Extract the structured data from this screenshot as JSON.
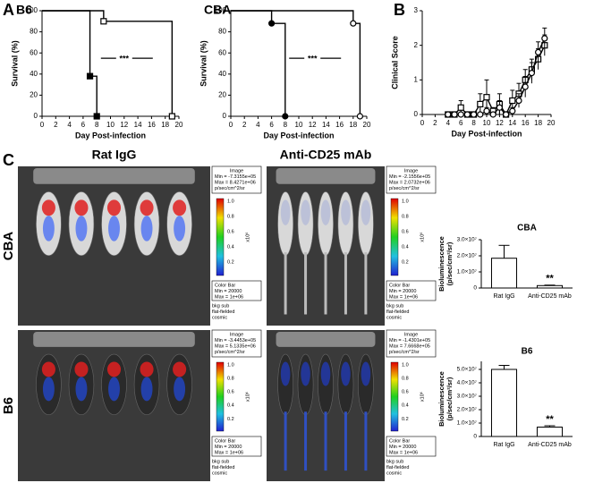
{
  "panel_labels": [
    "A",
    "B",
    "C"
  ],
  "chart_data": [
    {
      "type": "line",
      "title": "B6",
      "xlabel": "Day Post-infection",
      "ylabel": "Survival (%)",
      "step": true,
      "xlim": [
        0,
        20
      ],
      "xticks": [
        0,
        2,
        4,
        6,
        8,
        10,
        12,
        14,
        16,
        18,
        20
      ],
      "ylim": [
        0,
        100
      ],
      "yticks": [
        0,
        20,
        40,
        60,
        80,
        100
      ],
      "annotation": "***",
      "series": [
        {
          "x": [
            0,
            7,
            8
          ],
          "values": [
            100,
            38,
            0
          ],
          "marker": "square",
          "filled": true,
          "color": "#000000"
        },
        {
          "x": [
            0,
            9,
            19
          ],
          "values": [
            100,
            90,
            0
          ],
          "marker": "square",
          "filled": false,
          "color": "#000000"
        }
      ]
    },
    {
      "type": "line",
      "title": "CBA",
      "xlabel": "Day Post-infection",
      "ylabel": "Survival (%)",
      "step": true,
      "xlim": [
        0,
        20
      ],
      "xticks": [
        0,
        2,
        4,
        6,
        8,
        10,
        12,
        14,
        16,
        18,
        20
      ],
      "ylim": [
        0,
        100
      ],
      "yticks": [
        0,
        20,
        40,
        60,
        80,
        100
      ],
      "annotation": "***",
      "series": [
        {
          "x": [
            0,
            6,
            8
          ],
          "values": [
            100,
            88,
            0
          ],
          "marker": "circle",
          "filled": true,
          "color": "#000000"
        },
        {
          "x": [
            0,
            18,
            19
          ],
          "values": [
            100,
            88,
            0
          ],
          "marker": "circle",
          "filled": false,
          "color": "#000000"
        }
      ]
    },
    {
      "type": "line",
      "xlabel": "Day Post-infection",
      "ylabel": "Clinical Score",
      "step": false,
      "xlim": [
        0,
        20
      ],
      "xticks": [
        0,
        2,
        4,
        6,
        8,
        10,
        12,
        14,
        16,
        18,
        20
      ],
      "ylim": [
        0,
        3
      ],
      "yticks": [
        0,
        1,
        2,
        3
      ],
      "series": [
        {
          "x": [
            4,
            5,
            6,
            7,
            8,
            9,
            10,
            11,
            12,
            13,
            14,
            15,
            16,
            17,
            18,
            19
          ],
          "values": [
            0,
            0,
            0.2,
            0,
            0,
            0.3,
            0.5,
            0.1,
            0.3,
            0,
            0.4,
            0.6,
            1.0,
            1.3,
            1.6,
            2.0
          ],
          "errors": [
            0,
            0,
            0.2,
            0,
            0,
            0.3,
            0.5,
            0.1,
            0.3,
            0,
            0.3,
            0.3,
            0.3,
            0.3,
            0.3,
            0.3
          ],
          "marker": "square",
          "filled": false,
          "color": "#000000"
        },
        {
          "x": [
            4,
            5,
            6,
            7,
            8,
            9,
            10,
            11,
            12,
            13,
            14,
            15,
            16,
            17,
            18,
            19
          ],
          "values": [
            0,
            0,
            0,
            0,
            0,
            0,
            0.1,
            0,
            0.2,
            0,
            0.1,
            0.4,
            0.8,
            1.2,
            1.8,
            2.2
          ],
          "errors": [
            0,
            0,
            0,
            0,
            0,
            0,
            0.1,
            0,
            0.2,
            0,
            0.1,
            0.2,
            0.3,
            0.3,
            0.3,
            0.3
          ],
          "marker": "circle",
          "filled": false,
          "color": "#000000"
        }
      ]
    },
    {
      "type": "bar",
      "title": "CBA",
      "ylabel": [
        "Bioluminescence",
        "(p/sec/cm²/sr)"
      ],
      "categories": [
        "Rat IgG",
        "Anti-CD25 mAb"
      ],
      "values": [
        18500000,
        1500000
      ],
      "errors": [
        8000000,
        300000
      ],
      "color": "#ffffff",
      "ylim": [
        0,
        30000000
      ],
      "yticks": [
        0,
        {
          "value": 10000000,
          "label": "1.0×10⁷"
        },
        {
          "value": 20000000,
          "label": "2.0×10⁷"
        },
        {
          "value": 30000000,
          "label": "3.0×10⁷"
        }
      ],
      "annotation": "**"
    },
    {
      "type": "bar",
      "title": "B6",
      "ylabel": [
        "Bioluminescence",
        "(p/sec/cm²/sr)"
      ],
      "categories": [
        "Rat IgG",
        "Anti-CD25 mAb"
      ],
      "values": [
        50000000,
        7000000
      ],
      "errors": [
        3000000,
        1000000
      ],
      "color": "#ffffff",
      "ylim": [
        0,
        56000000
      ],
      "yticks": [
        0,
        {
          "value": 10000000,
          "label": "1.0×10⁷"
        },
        {
          "value": 20000000,
          "label": "2.0×10⁷"
        },
        {
          "value": 30000000,
          "label": "3.0×10⁷"
        },
        {
          "value": 40000000,
          "label": "4.0×10⁷"
        },
        {
          "value": 50000000,
          "label": "5.0×10⁷"
        }
      ],
      "annotation": "**"
    }
  ],
  "images": {
    "columns": [
      "Rat IgG",
      "Anti-CD25 mAb"
    ],
    "rows": [
      "CBA",
      "B6"
    ],
    "panels": [
      [
        {
          "image": "Image",
          "min": "Min = -7.3155e+05",
          "max": "Max = 8.4271e+06",
          "unit": "p/sec/cm^2/sr",
          "scale_ticks": [
            "1.0",
            "0.8",
            "0.6",
            "0.4",
            "0.2"
          ],
          "scale_unit": "x10⁶",
          "color_bar": "Color Bar",
          "cb_min": "Min = 20000",
          "cb_max": "Max = 1e+06",
          "notes": [
            "bkg sub",
            "flat-fielded",
            "cosmic"
          ]
        },
        {
          "image": "Image",
          "min": "Min = -2.1556e+05",
          "max": "Max = 2.0732e+06",
          "unit": "p/sec/cm^2/sr",
          "scale_ticks": [
            "1.0",
            "0.8",
            "0.6",
            "0.4",
            "0.2"
          ],
          "scale_unit": "x10⁶",
          "color_bar": "Color Bar",
          "cb_min": "Min = 20000",
          "cb_max": "Max = 1e+06",
          "notes": [
            "bkg sub",
            "flat-fielded",
            "cosmic"
          ]
        }
      ],
      [
        {
          "image": "Image",
          "min": "Min = -3.4453e+05",
          "max": "Max = 5.1335e+06",
          "unit": "p/sec/cm^2/sr",
          "scale_ticks": [
            "1.0",
            "0.8",
            "0.6",
            "0.4",
            "0.2"
          ],
          "scale_unit": "x10⁶",
          "color_bar": "Color Bar",
          "cb_min": "Min = 20000",
          "cb_max": "Max = 1e+06",
          "notes": [
            "bkg sub",
            "flat-fielded",
            "cosmic"
          ]
        },
        {
          "image": "Image",
          "min": "Min = -1.4301e+05",
          "max": "Max = 7.6668e+05",
          "unit": "p/sec/cm^2/sr",
          "scale_ticks": [
            "1.0",
            "0.8",
            "0.6",
            "0.4",
            "0.2"
          ],
          "scale_unit": "x10⁶",
          "color_bar": "Color Bar",
          "cb_min": "Min = 20000",
          "cb_max": "Max = 1e+06",
          "notes": [
            "bkg sub",
            "flat-fielded",
            "cosmic"
          ]
        }
      ]
    ]
  }
}
